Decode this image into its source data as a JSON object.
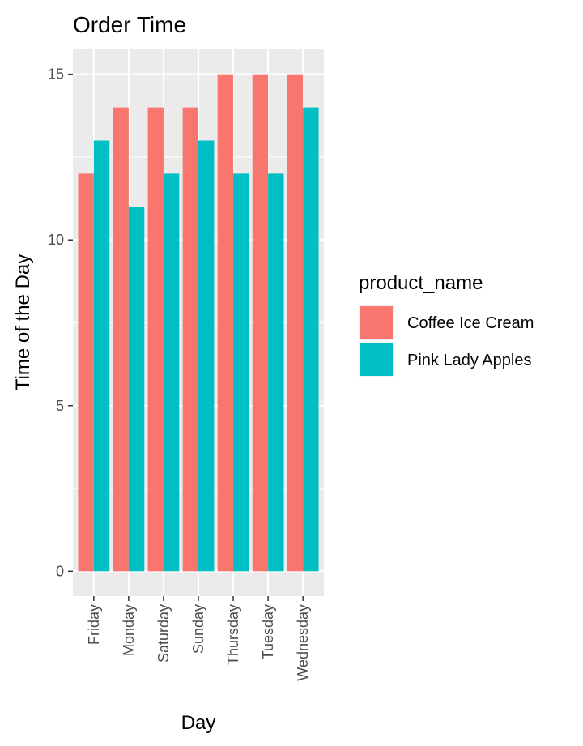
{
  "chart_data": {
    "type": "bar",
    "title": "Order Time",
    "xlabel": "Day",
    "ylabel": "Time of the Day",
    "categories": [
      "Friday",
      "Monday",
      "Saturday",
      "Sunday",
      "Thursday",
      "Tuesday",
      "Wednesday"
    ],
    "series": [
      {
        "name": "Coffee Ice Cream",
        "color": "#F8766D",
        "values": [
          12,
          14,
          14,
          14,
          15,
          15,
          15
        ]
      },
      {
        "name": "Pink Lady Apples",
        "color": "#00BFC4",
        "values": [
          13,
          11,
          12,
          13,
          12,
          12,
          14
        ]
      }
    ],
    "ylim": [
      -0.75,
      15.75
    ],
    "yticks": [
      0,
      5,
      10,
      15
    ],
    "legend": {
      "title": "product_name",
      "position": "right"
    },
    "grid": true,
    "panel_background": "#EBEBEB",
    "gridline_color": "#FFFFFF"
  }
}
